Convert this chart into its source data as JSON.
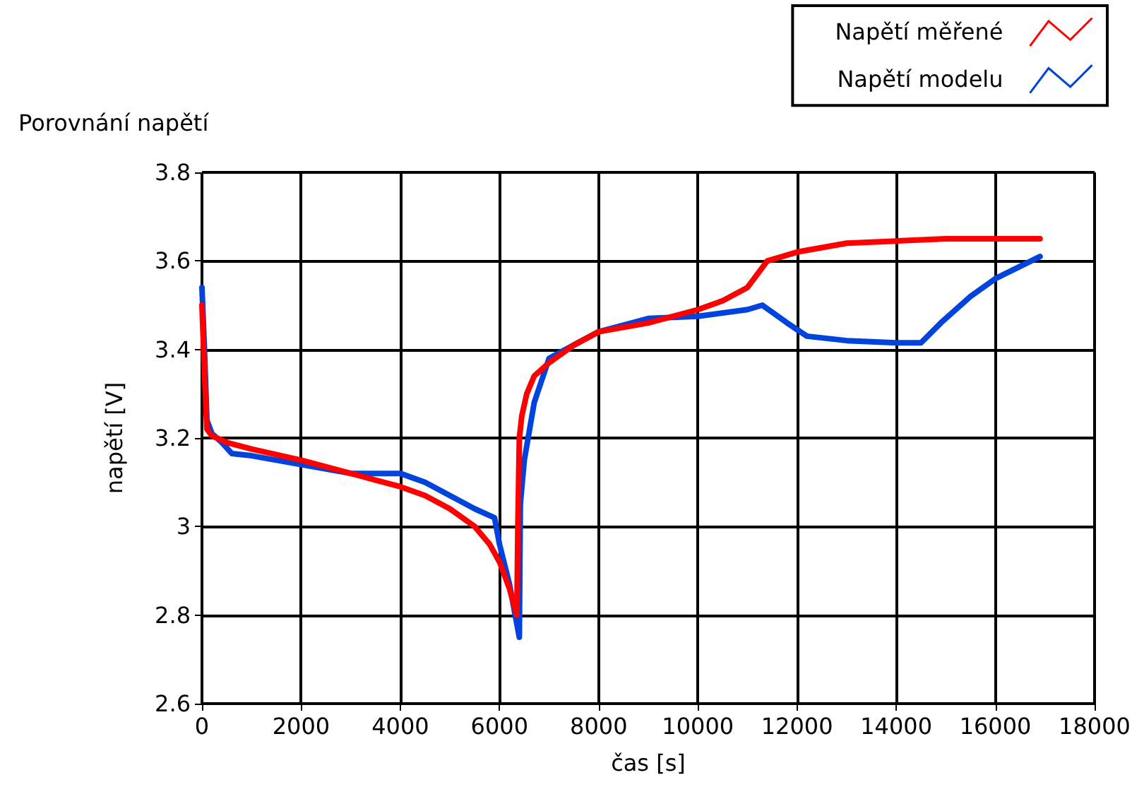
{
  "chart_data": {
    "type": "line",
    "title": "Porovnání napětí",
    "xlabel": "čas [s]",
    "ylabel": "napětí [V]",
    "xlim": [
      0,
      18000
    ],
    "xticks": [
      0,
      2000,
      4000,
      6000,
      8000,
      10000,
      12000,
      14000,
      16000,
      18000
    ],
    "ylim": [
      2.6,
      3.8
    ],
    "yticks": [
      2.6,
      2.8,
      3,
      3.2,
      3.4,
      3.6,
      3.8
    ],
    "grid": true,
    "legend": "top right",
    "marker": "none",
    "line_style": "solid",
    "series": [
      {
        "name": "Napětí měřené",
        "color": "#ff0000",
        "x": [
          0,
          50,
          100,
          200,
          500,
          1000,
          2000,
          3000,
          3500,
          4000,
          4500,
          5000,
          5500,
          5800,
          6000,
          6200,
          6350,
          6370,
          6400,
          6450,
          6550,
          6700,
          7000,
          7500,
          8000,
          9000,
          10000,
          10500,
          11000,
          11400,
          12000,
          13000,
          14000,
          15000,
          16000,
          16900
        ],
        "values": [
          3.5,
          3.35,
          3.22,
          3.205,
          3.19,
          3.175,
          3.15,
          3.12,
          3.105,
          3.09,
          3.07,
          3.04,
          3.0,
          2.96,
          2.92,
          2.86,
          2.8,
          3.0,
          3.2,
          3.25,
          3.3,
          3.34,
          3.37,
          3.41,
          3.44,
          3.46,
          3.49,
          3.51,
          3.54,
          3.6,
          3.62,
          3.64,
          3.645,
          3.65,
          3.65,
          3.65
        ]
      },
      {
        "name": "Napětí modelu",
        "color": "#0044dd",
        "x": [
          0,
          50,
          100,
          200,
          400,
          600,
          1000,
          2000,
          3000,
          4000,
          4500,
          5000,
          5500,
          5900,
          6000,
          6200,
          6400,
          6420,
          6500,
          6700,
          7000,
          7500,
          8000,
          9000,
          10000,
          11000,
          11300,
          11800,
          12200,
          13000,
          14000,
          14500,
          14900,
          15500,
          16000,
          16900
        ],
        "values": [
          3.54,
          3.4,
          3.24,
          3.21,
          3.19,
          3.165,
          3.16,
          3.14,
          3.12,
          3.12,
          3.1,
          3.07,
          3.04,
          3.02,
          2.96,
          2.87,
          2.75,
          3.05,
          3.15,
          3.28,
          3.38,
          3.41,
          3.44,
          3.47,
          3.475,
          3.49,
          3.5,
          3.46,
          3.43,
          3.42,
          3.415,
          3.415,
          3.46,
          3.52,
          3.56,
          3.61
        ]
      }
    ]
  }
}
